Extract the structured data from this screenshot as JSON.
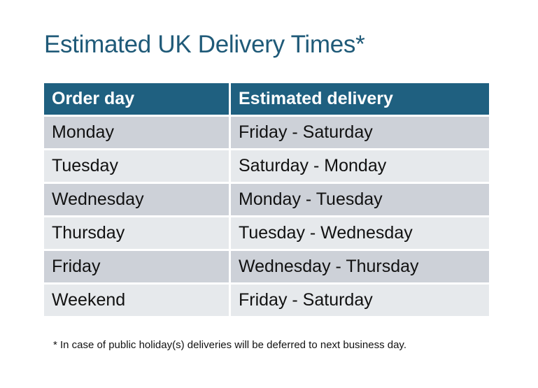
{
  "title": "Estimated UK Delivery Times*",
  "table": {
    "headers": [
      "Order day",
      "Estimated delivery"
    ],
    "rows": [
      [
        "Monday",
        "Friday - Saturday"
      ],
      [
        "Tuesday",
        "Saturday - Monday"
      ],
      [
        "Wednesday",
        "Monday - Tuesday"
      ],
      [
        "Thursday",
        "Tuesday - Wednesday"
      ],
      [
        "Friday",
        "Wednesday - Thursday"
      ],
      [
        "Weekend",
        "Friday - Saturday"
      ]
    ]
  },
  "footnote": "* In case of public holiday(s) deliveries will be deferred to next business day.",
  "colors": {
    "header": "#1f6080",
    "title": "#1f5a78",
    "row_dark": "#cdd1d8",
    "row_light": "#e6e9ec"
  }
}
